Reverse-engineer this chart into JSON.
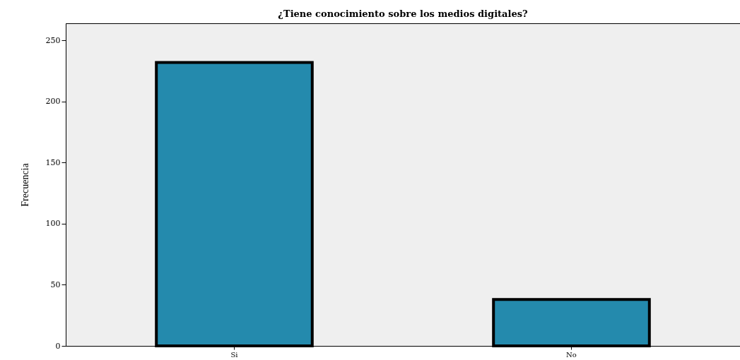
{
  "chart_data": {
    "type": "bar",
    "title": "¿Tiene conocimiento sobre los medios digitales?",
    "ylabel": "Frecuencia",
    "categories": [
      "Si",
      "No"
    ],
    "values": [
      232,
      38
    ],
    "color": "#248aad",
    "ylim": [
      0,
      264
    ],
    "yticks": [
      0,
      50,
      100,
      150,
      200,
      250
    ],
    "grid": false,
    "legend": false
  }
}
